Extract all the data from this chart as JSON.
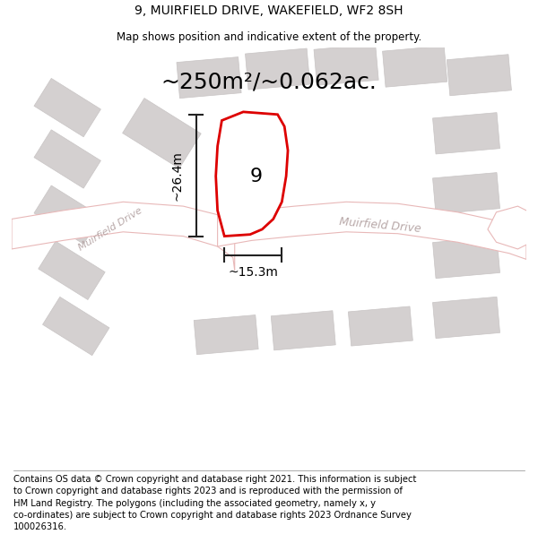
{
  "title": "9, MUIRFIELD DRIVE, WAKEFIELD, WF2 8SH",
  "subtitle": "Map shows position and indicative extent of the property.",
  "area_label": "~250m²/~0.062ac.",
  "property_number": "9",
  "dim_height": "~26.4m",
  "dim_width": "~15.3m",
  "street_label_1": "Muirfield Drive",
  "street_label_2": "Muirfield Drive",
  "footer": "Contains OS data © Crown copyright and database right 2021. This information is subject\nto Crown copyright and database rights 2023 and is reproduced with the permission of\nHM Land Registry. The polygons (including the associated geometry, namely x, y\nco-ordinates) are subject to Crown copyright and database rights 2023 Ordnance Survey\n100026316.",
  "map_bg": "#eeecec",
  "plot_border_color": "#dd0000",
  "road_fill": "#ffffff",
  "road_line": "#e8b8b8",
  "building_color": "#d4d0d0",
  "building_border": "#c8c4c4",
  "dim_color": "#222222",
  "footer_fontsize": 7.2,
  "title_fontsize": 10,
  "subtitle_fontsize": 8.5,
  "area_fontsize": 18
}
